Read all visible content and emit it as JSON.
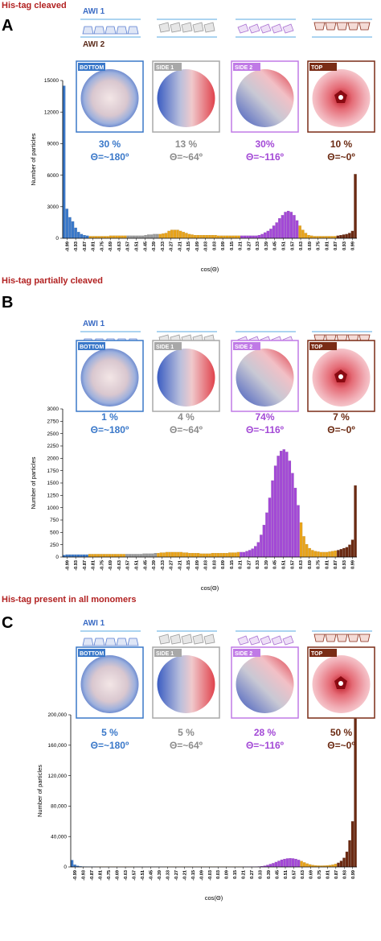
{
  "colors": {
    "bottom": "#3a78c9",
    "side1": "#9a9a9a",
    "side2": "#a349d6",
    "top": "#6b2a12",
    "middle": "#e8a31a",
    "title_red": "#b22222",
    "awi_line": "#5aa8e0"
  },
  "x_ticks": [
    "-0.99",
    "-0.93",
    "-0.87",
    "-0.81",
    "-0.75",
    "-0.69",
    "-0.63",
    "-0.57",
    "-0.51",
    "-0.45",
    "-0.39",
    "-0.33",
    "-0.27",
    "-0.21",
    "-0.15",
    "-0.09",
    "-0.03",
    "0.03",
    "0.09",
    "0.15",
    "0.21",
    "0.27",
    "0.33",
    "0.39",
    "0.45",
    "0.51",
    "0.57",
    "0.63",
    "0.69",
    "0.75",
    "0.81",
    "0.87",
    "0.93",
    "0.99"
  ],
  "common": {
    "awi1": "AWI 1",
    "awi2": "AWI 2",
    "xlabel": "cos(Θ)",
    "ylabel": "Number of particles",
    "panel_bottom": "BOTTOM",
    "panel_side1": "SIDE 1",
    "panel_side2": "SIDE 2",
    "panel_top": "TOP",
    "theta_bottom": "Θ=~180º",
    "theta_side1": "Θ=~64º",
    "theta_side2": "Θ=~116º",
    "theta_top": "Θ=~0º"
  },
  "sections": [
    {
      "letter": "A",
      "title": "His-tag cleaved",
      "pct_bottom": "30 %",
      "pct_side1": "13 %",
      "pct_side2": "30%",
      "pct_top": "10 %",
      "y_tick_labels": [
        "0",
        "3000",
        "6000",
        "9000",
        "12000",
        "15000"
      ]
    },
    {
      "letter": "B",
      "title": "His-tag partially cleaved",
      "pct_bottom": "1 %",
      "pct_side1": "4 %",
      "pct_side2": "74%",
      "pct_top": "7 %",
      "y_tick_labels": [
        "0",
        "250",
        "500",
        "750",
        "1000",
        "1250",
        "1500",
        "1750",
        "2000",
        "2250",
        "2500",
        "2750",
        "3000"
      ]
    },
    {
      "letter": "C",
      "title": "His-tag present in all monomers",
      "pct_bottom": "5 %",
      "pct_side1": "5 %",
      "pct_side2": "28 %",
      "pct_top": "50 %",
      "y_tick_labels": [
        "0",
        "40,000",
        "80,000",
        "120,000",
        "160,000",
        "200,000"
      ]
    }
  ],
  "chart_data": [
    {
      "type": "bar",
      "xlabel": "cos(Θ)",
      "ylabel": "Number of particles",
      "ylim": [
        0,
        15000
      ],
      "y_ticks": [
        0,
        3000,
        6000,
        9000,
        12000,
        15000
      ],
      "series": [
        {
          "values": [
            14500,
            2800,
            2000,
            1600,
            1000,
            600,
            400,
            300,
            250,
            200,
            200,
            200,
            200,
            200,
            200,
            200,
            250,
            250,
            250,
            250,
            250,
            250,
            250,
            250,
            250,
            250,
            250,
            250,
            300,
            350,
            350,
            400,
            400,
            400,
            450,
            500,
            700,
            800,
            800,
            800,
            700,
            600,
            500,
            400,
            350,
            300,
            300,
            300,
            300,
            300,
            300,
            300,
            300,
            250,
            250,
            250,
            250,
            250,
            250,
            250,
            250,
            250,
            250,
            250,
            250,
            250,
            250,
            300,
            400,
            550,
            700,
            900,
            1200,
            1500,
            1900,
            2200,
            2500,
            2600,
            2500,
            2200,
            1700,
            1200,
            800,
            500,
            300,
            250,
            200,
            200,
            200,
            200,
            200,
            200,
            200,
            200,
            250,
            300,
            350,
            400,
            500,
            700,
            6100
          ]
        }
      ]
    },
    {
      "type": "bar",
      "xlabel": "cos(Θ)",
      "ylabel": "Number of particles",
      "ylim": [
        0,
        3000
      ],
      "y_ticks": [
        0,
        250,
        500,
        750,
        1000,
        1250,
        1500,
        1750,
        2000,
        2250,
        2500,
        2750,
        3000
      ],
      "series": [
        {
          "values": [
            40,
            50,
            50,
            50,
            50,
            50,
            50,
            50,
            50,
            60,
            60,
            60,
            60,
            60,
            60,
            60,
            60,
            60,
            60,
            60,
            60,
            60,
            60,
            60,
            60,
            60,
            60,
            60,
            70,
            70,
            70,
            70,
            80,
            80,
            90,
            90,
            100,
            100,
            100,
            100,
            100,
            100,
            90,
            90,
            80,
            80,
            80,
            80,
            70,
            70,
            70,
            70,
            80,
            80,
            80,
            80,
            80,
            80,
            90,
            90,
            90,
            100,
            100,
            100,
            120,
            140,
            170,
            220,
            300,
            450,
            650,
            900,
            1200,
            1550,
            1850,
            2050,
            2150,
            2180,
            2130,
            1950,
            1700,
            1400,
            1050,
            700,
            420,
            260,
            180,
            140,
            120,
            110,
            100,
            100,
            100,
            110,
            120,
            130,
            140,
            160,
            180,
            200,
            250,
            350,
            1450
          ]
        }
      ]
    },
    {
      "type": "bar",
      "xlabel": "cos(Θ)",
      "ylabel": "Number of particles",
      "ylim": [
        0,
        200000
      ],
      "y_ticks": [
        0,
        40000,
        80000,
        120000,
        160000,
        200000
      ],
      "series": [
        {
          "values": [
            9000,
            3000,
            1500,
            800,
            500,
            400,
            300,
            300,
            300,
            300,
            300,
            300,
            300,
            300,
            300,
            300,
            300,
            300,
            300,
            300,
            300,
            300,
            300,
            300,
            300,
            300,
            300,
            300,
            300,
            300,
            300,
            300,
            300,
            300,
            300,
            300,
            300,
            300,
            300,
            300,
            300,
            300,
            300,
            300,
            300,
            300,
            300,
            300,
            300,
            300,
            300,
            300,
            300,
            300,
            300,
            300,
            300,
            300,
            300,
            300,
            300,
            300,
            300,
            300,
            300,
            400,
            600,
            1000,
            1600,
            2600,
            3800,
            5000,
            6500,
            8000,
            9500,
            10500,
            11200,
            11500,
            11200,
            10500,
            9300,
            7800,
            6000,
            4500,
            3300,
            2500,
            2000,
            1800,
            1700,
            1800,
            2000,
            2400,
            3000,
            4000,
            5500,
            8000,
            12000,
            20000,
            35000,
            60000,
            195000
          ]
        }
      ]
    }
  ]
}
